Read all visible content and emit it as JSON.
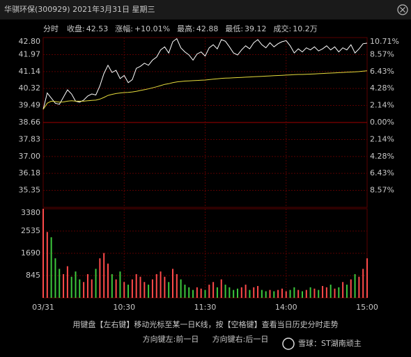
{
  "title": "华骐环保(300929) 2021年3月31日 星期三",
  "info": [
    {
      "label": "分时"
    },
    {
      "label": "收盘:",
      "value": "42.53"
    },
    {
      "label": "涨幅:",
      "value": "+10.01%"
    },
    {
      "label": "最高:",
      "value": "42.88"
    },
    {
      "label": "最低:",
      "value": "39.12"
    },
    {
      "label": "成交:",
      "value": "10.2万"
    }
  ],
  "chart_data": [
    {
      "type": "line",
      "x": [
        0,
        3,
        6,
        9,
        12,
        15,
        18,
        21,
        24,
        27,
        30,
        33,
        36,
        39,
        42,
        45,
        48,
        51,
        54,
        57,
        60,
        63,
        66,
        69,
        72,
        75,
        78,
        81,
        84,
        87,
        90,
        93,
        96,
        99,
        102,
        105,
        108,
        111,
        114,
        117,
        120,
        123,
        126,
        129,
        132,
        135,
        138,
        141,
        144,
        147,
        150,
        153,
        156,
        159,
        162,
        165,
        168,
        171,
        174,
        177,
        180,
        183,
        186,
        189,
        192,
        195,
        198,
        201,
        204,
        207,
        210,
        213,
        216,
        219,
        222,
        225,
        228,
        231,
        234,
        237,
        240
      ],
      "xlim": [
        0,
        240
      ],
      "series": [
        {
          "color": "#ffffff",
          "values": [
            39.3,
            40.1,
            39.85,
            39.6,
            39.55,
            39.9,
            40.25,
            40.05,
            39.7,
            39.65,
            39.75,
            39.95,
            40.05,
            40.0,
            40.45,
            41.05,
            41.45,
            41.1,
            41.2,
            40.8,
            40.95,
            40.6,
            40.75,
            41.3,
            41.4,
            41.55,
            41.45,
            41.7,
            41.85,
            42.2,
            42.35,
            42.05,
            42.6,
            42.75,
            42.3,
            42.1,
            41.95,
            41.7,
            42.0,
            42.1,
            41.9,
            42.3,
            42.45,
            42.25,
            42.7,
            42.62,
            42.35,
            42.05,
            41.95,
            42.2,
            42.4,
            42.25,
            42.55,
            42.7,
            42.45,
            42.3,
            42.55,
            42.35,
            42.5,
            42.6,
            42.65,
            42.4,
            42.05,
            42.25,
            42.1,
            42.3,
            42.2,
            42.35,
            42.15,
            42.25,
            42.4,
            42.2,
            42.35,
            42.1,
            42.3,
            42.2,
            42.45,
            42.05,
            42.25,
            42.5,
            42.53
          ]
        },
        {
          "color": "#e6dc3c",
          "values": [
            39.3,
            39.6,
            39.7,
            39.68,
            39.65,
            39.66,
            39.7,
            39.72,
            39.7,
            39.7,
            39.7,
            39.72,
            39.74,
            39.75,
            39.8,
            39.88,
            39.98,
            40.03,
            40.07,
            40.1,
            40.12,
            40.13,
            40.15,
            40.18,
            40.22,
            40.26,
            40.3,
            40.35,
            40.4,
            40.46,
            40.52,
            40.55,
            40.6,
            40.64,
            40.66,
            40.68,
            40.69,
            40.7,
            40.71,
            40.72,
            40.73,
            40.75,
            40.77,
            40.79,
            40.81,
            40.82,
            40.83,
            40.84,
            40.85,
            40.86,
            40.87,
            40.88,
            40.89,
            40.9,
            40.91,
            40.92,
            40.93,
            40.94,
            40.95,
            40.96,
            40.97,
            40.98,
            40.99,
            41.0,
            41.0,
            41.01,
            41.02,
            41.03,
            41.04,
            41.05,
            41.06,
            41.07,
            41.08,
            41.09,
            41.1,
            41.11,
            41.12,
            41.13,
            41.14,
            41.16,
            41.18
          ]
        }
      ],
      "ylim": [
        34.52,
        42.8
      ],
      "yticks": [
        {
          "value": 42.8,
          "label": "42.80"
        },
        41.97,
        41.14,
        40.32,
        39.49,
        38.66,
        37.83,
        {
          "value": 37,
          "label": "37.00"
        },
        36.18,
        35.35
      ],
      "y2lim": [
        -10.71,
        10.71
      ],
      "y2ticks": [
        {
          "value": 10.71,
          "label": "10.71%"
        },
        {
          "value": 8.57,
          "label": "8.57%"
        },
        {
          "value": 6.43,
          "label": "6.43%"
        },
        {
          "value": 4.28,
          "label": "4.28%"
        },
        {
          "value": 2.14,
          "label": "2.14%"
        },
        {
          "value": 0,
          "label": "0.00%"
        },
        {
          "value": -2.14,
          "label": "2.14%"
        },
        {
          "value": -4.28,
          "label": "4.28%"
        },
        {
          "value": -6.43,
          "label": "6.43%"
        },
        {
          "value": -8.57,
          "label": "8.57%"
        }
      ],
      "up_color": "#ff4a4a",
      "down_color": "#3cc83c",
      "grid": true
    },
    {
      "type": "bar",
      "x": [
        0,
        3,
        6,
        9,
        12,
        15,
        18,
        21,
        24,
        27,
        30,
        33,
        36,
        39,
        42,
        45,
        48,
        51,
        54,
        57,
        60,
        63,
        66,
        69,
        72,
        75,
        78,
        81,
        84,
        87,
        90,
        93,
        96,
        99,
        102,
        105,
        108,
        111,
        114,
        117,
        120,
        123,
        126,
        129,
        132,
        135,
        138,
        141,
        144,
        147,
        150,
        153,
        156,
        159,
        162,
        165,
        168,
        171,
        174,
        177,
        180,
        183,
        186,
        189,
        192,
        195,
        198,
        201,
        204,
        207,
        210,
        213,
        216,
        219,
        222,
        225,
        228,
        231,
        234,
        237,
        240
      ],
      "xlim": [
        0,
        240
      ],
      "xticks": [
        {
          "value": 0,
          "label": "03/31"
        },
        {
          "value": 60,
          "label": "10:30"
        },
        {
          "value": 120,
          "label": "11:30"
        },
        {
          "value": 180,
          "label": "14:00"
        },
        {
          "value": 240,
          "label": "15:00"
        }
      ],
      "values": [
        3380,
        2500,
        2300,
        1500,
        1100,
        900,
        1200,
        800,
        1000,
        700,
        600,
        900,
        700,
        1100,
        1500,
        1700,
        1300,
        900,
        700,
        1000,
        600,
        500,
        700,
        900,
        800,
        600,
        500,
        700,
        900,
        1000,
        800,
        600,
        1100,
        900,
        700,
        500,
        400,
        300,
        400,
        350,
        300,
        500,
        600,
        400,
        700,
        500,
        400,
        300,
        350,
        400,
        500,
        300,
        400,
        450,
        300,
        250,
        300,
        250,
        300,
        350,
        250,
        300,
        400,
        300,
        250,
        300,
        400,
        350,
        300,
        450,
        400,
        500,
        350,
        400,
        600,
        500,
        700,
        900,
        800,
        1100,
        1500
      ],
      "ylim": [
        0,
        3380
      ],
      "yticks": [
        845,
        1690,
        2535,
        3380
      ],
      "up_color": "#ff4a4a",
      "down_color": "#3cc83c",
      "grid": true
    }
  ],
  "footer": [
    "用键盘【左右键】移动光标至某一日K线，按【空格键】查看当日历史分时走势",
    "方向键左:前一日",
    "方向键右:后一日"
  ],
  "watermark": "雪球：ST湖南顽主"
}
